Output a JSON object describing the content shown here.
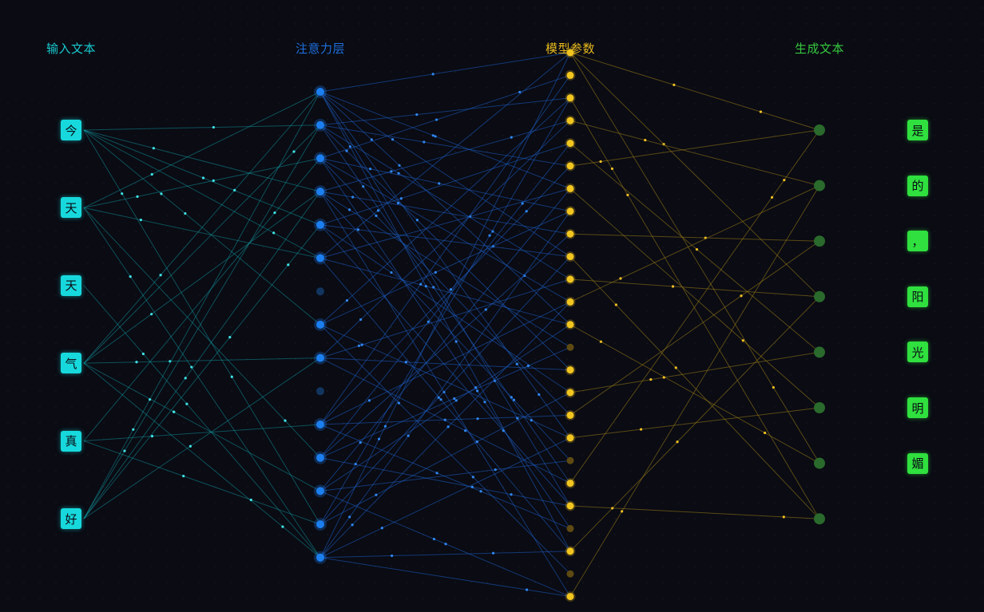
{
  "columns": {
    "input": {
      "title": "输入文本",
      "color": "#19c9cf"
    },
    "attention": {
      "title": "注意力层",
      "color": "#1e6fdc"
    },
    "params": {
      "title": "模型参数",
      "color": "#e6b91e"
    },
    "output": {
      "title": "生成文本",
      "color": "#35c83e"
    }
  },
  "input_tokens": [
    "今",
    "天",
    "天",
    "气",
    "真",
    "好"
  ],
  "output_tokens": [
    "是",
    "的",
    "，",
    "阳",
    "光",
    "明",
    "媚"
  ],
  "attention_nodes": [
    {
      "active": true
    },
    {
      "active": true
    },
    {
      "active": true
    },
    {
      "active": true
    },
    {
      "active": true
    },
    {
      "active": true
    },
    {
      "active": false
    },
    {
      "active": true
    },
    {
      "active": true
    },
    {
      "active": false
    },
    {
      "active": true
    },
    {
      "active": true
    },
    {
      "active": true
    },
    {
      "active": true
    },
    {
      "active": true
    }
  ],
  "param_nodes": [
    {
      "active": true
    },
    {
      "active": true
    },
    {
      "active": true
    },
    {
      "active": true
    },
    {
      "active": true
    },
    {
      "active": true
    },
    {
      "active": true
    },
    {
      "active": true
    },
    {
      "active": true
    },
    {
      "active": true
    },
    {
      "active": true
    },
    {
      "active": true
    },
    {
      "active": true
    },
    {
      "active": false
    },
    {
      "active": true
    },
    {
      "active": true
    },
    {
      "active": true
    },
    {
      "active": true
    },
    {
      "active": false
    },
    {
      "active": true
    },
    {
      "active": true
    },
    {
      "active": false
    },
    {
      "active": true
    },
    {
      "active": false
    },
    {
      "active": true
    }
  ],
  "output_node_count": 8,
  "links": {
    "input_to_attention": [
      [
        0,
        1
      ],
      [
        0,
        3
      ],
      [
        0,
        4
      ],
      [
        0,
        5
      ],
      [
        0,
        7
      ],
      [
        0,
        13
      ],
      [
        1,
        0
      ],
      [
        1,
        2
      ],
      [
        1,
        5
      ],
      [
        1,
        11
      ],
      [
        1,
        14
      ],
      [
        2,
        14
      ],
      [
        3,
        0
      ],
      [
        3,
        1
      ],
      [
        3,
        3
      ],
      [
        3,
        8
      ],
      [
        3,
        12
      ],
      [
        3,
        14
      ],
      [
        4,
        2
      ],
      [
        4,
        10
      ],
      [
        4,
        13
      ],
      [
        5,
        0
      ],
      [
        5,
        1
      ],
      [
        5,
        3
      ],
      [
        5,
        4
      ],
      [
        5,
        8
      ]
    ],
    "attention_to_params": [
      [
        0,
        0
      ],
      [
        0,
        6
      ],
      [
        0,
        9
      ],
      [
        0,
        12
      ],
      [
        0,
        17
      ],
      [
        0,
        20
      ],
      [
        0,
        22
      ],
      [
        1,
        2
      ],
      [
        1,
        5
      ],
      [
        1,
        10
      ],
      [
        1,
        14
      ],
      [
        1,
        19
      ],
      [
        2,
        1
      ],
      [
        2,
        7
      ],
      [
        2,
        11
      ],
      [
        2,
        16
      ],
      [
        2,
        21
      ],
      [
        3,
        3
      ],
      [
        3,
        8
      ],
      [
        3,
        13
      ],
      [
        3,
        18
      ],
      [
        3,
        24
      ],
      [
        4,
        4
      ],
      [
        4,
        9
      ],
      [
        4,
        15
      ],
      [
        4,
        20
      ],
      [
        5,
        0
      ],
      [
        5,
        6
      ],
      [
        5,
        12
      ],
      [
        5,
        22
      ],
      [
        7,
        2
      ],
      [
        7,
        7
      ],
      [
        7,
        17
      ],
      [
        7,
        23
      ],
      [
        8,
        3
      ],
      [
        8,
        10
      ],
      [
        8,
        14
      ],
      [
        8,
        19
      ],
      [
        10,
        1
      ],
      [
        10,
        5
      ],
      [
        10,
        11
      ],
      [
        10,
        16
      ],
      [
        10,
        21
      ],
      [
        11,
        4
      ],
      [
        11,
        8
      ],
      [
        11,
        13
      ],
      [
        11,
        20
      ],
      [
        12,
        6
      ],
      [
        12,
        12
      ],
      [
        12,
        18
      ],
      [
        12,
        24
      ],
      [
        13,
        2
      ],
      [
        13,
        9
      ],
      [
        13,
        15
      ],
      [
        14,
        0
      ],
      [
        14,
        7
      ],
      [
        14,
        11
      ],
      [
        14,
        17
      ],
      [
        14,
        22
      ],
      [
        14,
        24
      ]
    ],
    "params_to_output": [
      [
        0,
        0
      ],
      [
        0,
        3
      ],
      [
        0,
        6
      ],
      [
        2,
        7
      ],
      [
        3,
        1
      ],
      [
        4,
        4
      ],
      [
        5,
        0
      ],
      [
        6,
        5
      ],
      [
        8,
        2
      ],
      [
        9,
        7
      ],
      [
        10,
        3
      ],
      [
        11,
        1
      ],
      [
        12,
        6
      ],
      [
        15,
        4
      ],
      [
        16,
        2
      ],
      [
        17,
        5
      ],
      [
        19,
        0
      ],
      [
        20,
        7
      ],
      [
        22,
        3
      ],
      [
        24,
        1
      ]
    ]
  }
}
